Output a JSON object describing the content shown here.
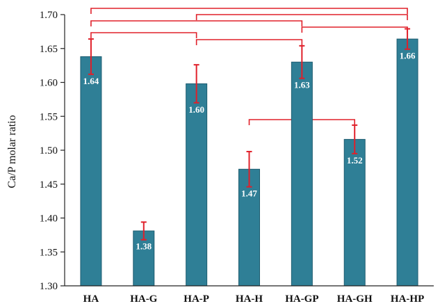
{
  "chart_data": {
    "type": "bar",
    "categories": [
      "HA",
      "HA-G",
      "HA-P",
      "HA-H",
      "HA-GP",
      "HA-GH",
      "HA-HP"
    ],
    "values": [
      1.638,
      1.381,
      1.598,
      1.472,
      1.63,
      1.516,
      1.664
    ],
    "error": [
      0.026,
      0.013,
      0.028,
      0.026,
      0.024,
      0.021,
      0.015
    ],
    "data_labels": [
      "1.64",
      "1.38",
      "1.60",
      "1.47",
      "1.63",
      "1.52",
      "1.66"
    ],
    "ylabel": "Ca/P molar ratio",
    "xlabel": "",
    "title": "",
    "ylim": [
      1.3,
      1.7
    ],
    "yticks": [
      1.3,
      1.35,
      1.4,
      1.45,
      1.5,
      1.55,
      1.6,
      1.65,
      1.7
    ],
    "ytick_labels": [
      "1.30",
      "1.35",
      "1.40",
      "1.45",
      "1.50",
      "1.55",
      "1.60",
      "1.65",
      "1.70"
    ],
    "grid": false,
    "brackets": [
      {
        "from": "HA",
        "to": "HA-HP"
      },
      {
        "from": "HA-P",
        "to": "HA-HP"
      },
      {
        "from": "HA",
        "to": "HA-GP"
      },
      {
        "from": "HA-GP",
        "to": "HA-HP"
      },
      {
        "from": "HA",
        "to": "HA-P"
      },
      {
        "from": "HA-P",
        "to": "HA-GP"
      },
      {
        "from": "HA-H",
        "to": "HA-GH"
      }
    ],
    "colors": {
      "bar": "#2f7f96",
      "bar_edge": "#1e5d70",
      "error": "#e0202a",
      "bracket": "#e0202a",
      "axis": "#222222"
    }
  }
}
